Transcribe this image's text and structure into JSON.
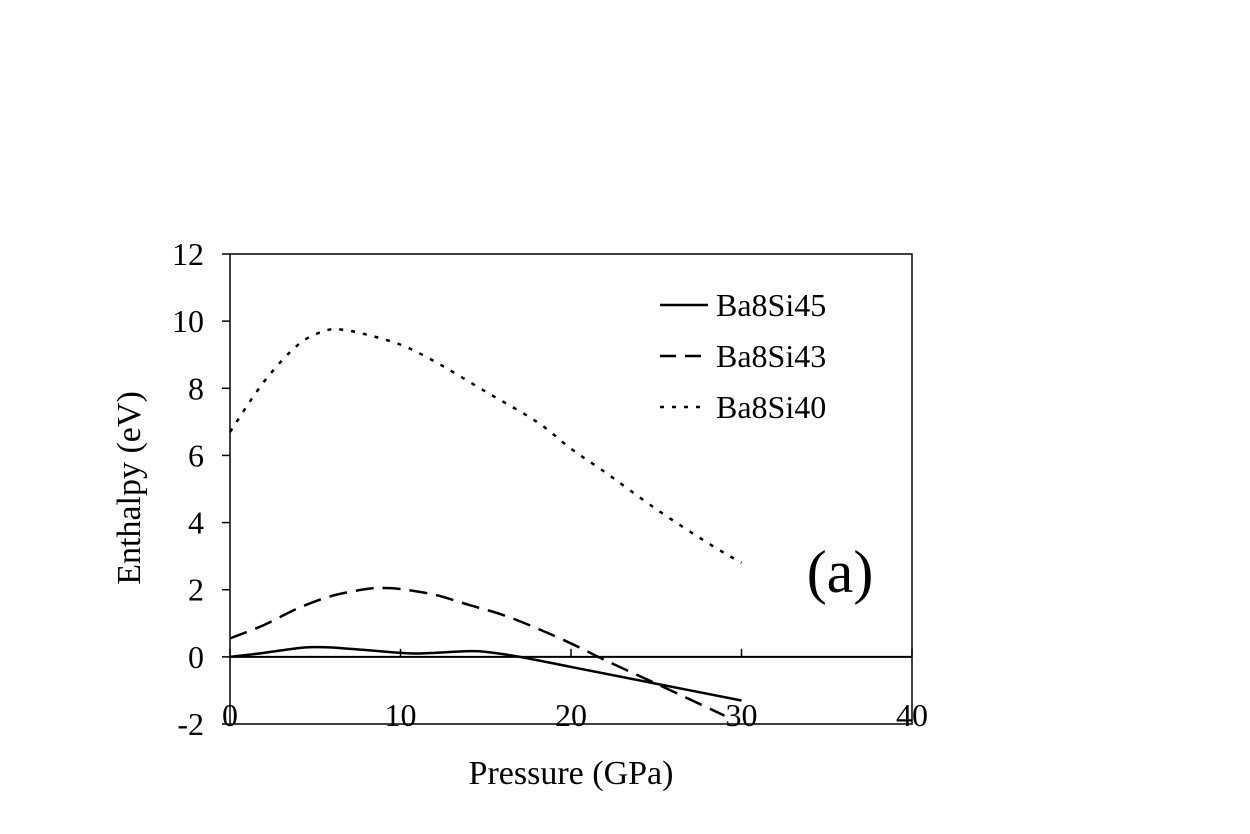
{
  "chart_data": {
    "type": "line",
    "title": "",
    "panel_label": "(a)",
    "xlabel": "Pressure (GPa)",
    "ylabel": "Enthalpy (eV)",
    "xlim": [
      0,
      40
    ],
    "ylim": [
      -2,
      12
    ],
    "x_ticks": [
      0,
      10,
      20,
      30,
      40
    ],
    "y_ticks": [
      -2,
      0,
      2,
      4,
      6,
      8,
      10,
      12
    ],
    "grid": false,
    "legend_position": "top-right",
    "series": [
      {
        "name": "Ba8Si45",
        "dash": "solid",
        "color": "#000000",
        "points": [
          [
            0,
            0
          ],
          [
            2,
            0.12
          ],
          [
            4,
            0.26
          ],
          [
            5,
            0.29
          ],
          [
            6,
            0.28
          ],
          [
            8,
            0.2
          ],
          [
            10,
            0.12
          ],
          [
            11,
            0.1
          ],
          [
            12,
            0.12
          ],
          [
            14,
            0.17
          ],
          [
            15,
            0.15
          ],
          [
            17,
            0.0
          ],
          [
            20,
            -0.3
          ],
          [
            25,
            -0.8
          ],
          [
            30,
            -1.3
          ]
        ]
      },
      {
        "name": "Ba8Si43",
        "dash": "dashed",
        "color": "#000000",
        "points": [
          [
            0,
            0.55
          ],
          [
            2,
            0.95
          ],
          [
            4,
            1.45
          ],
          [
            6,
            1.82
          ],
          [
            8,
            2.02
          ],
          [
            9,
            2.05
          ],
          [
            10,
            2.02
          ],
          [
            12,
            1.85
          ],
          [
            14,
            1.55
          ],
          [
            16,
            1.25
          ],
          [
            18,
            0.85
          ],
          [
            20,
            0.4
          ],
          [
            22,
            -0.1
          ],
          [
            25,
            -0.8
          ],
          [
            29,
            -1.75
          ]
        ]
      },
      {
        "name": "Ba8Si40",
        "dash": "dotted",
        "color": "#000000",
        "points": [
          [
            0,
            6.7
          ],
          [
            2,
            8.2
          ],
          [
            4,
            9.3
          ],
          [
            5.5,
            9.7
          ],
          [
            6.5,
            9.75
          ],
          [
            8,
            9.6
          ],
          [
            10,
            9.3
          ],
          [
            12,
            8.8
          ],
          [
            15,
            7.9
          ],
          [
            18,
            7.0
          ],
          [
            20,
            6.2
          ],
          [
            22,
            5.5
          ],
          [
            25,
            4.4
          ],
          [
            28,
            3.4
          ],
          [
            30,
            2.8
          ]
        ]
      }
    ]
  }
}
